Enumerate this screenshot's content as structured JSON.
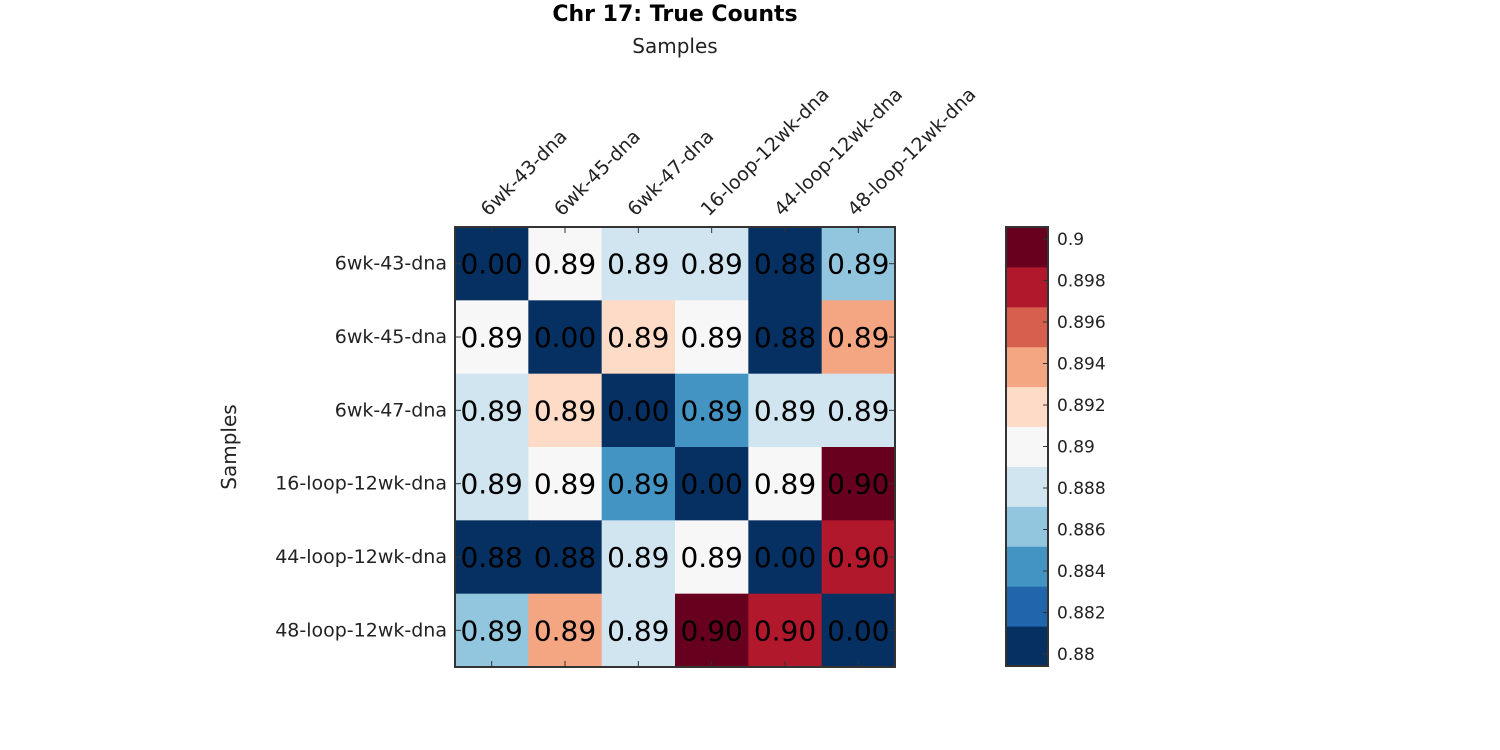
{
  "chart_data": {
    "type": "heatmap",
    "title": "Chr 17: True Counts",
    "xlabel": "Samples",
    "ylabel": "Samples",
    "categories": [
      "6wk-43-dna",
      "6wk-45-dna",
      "6wk-47-dna",
      "16-loop-12wk-dna",
      "44-loop-12wk-dna",
      "48-loop-12wk-dna"
    ],
    "values": [
      [
        0.0,
        0.89,
        0.888,
        0.888,
        0.88,
        0.886
      ],
      [
        0.89,
        0.0,
        0.892,
        0.89,
        0.88,
        0.894
      ],
      [
        0.888,
        0.892,
        0.0,
        0.885,
        0.888,
        0.888
      ],
      [
        0.888,
        0.89,
        0.885,
        0.0,
        0.89,
        0.9
      ],
      [
        0.88,
        0.88,
        0.888,
        0.89,
        0.0,
        0.897
      ],
      [
        0.886,
        0.894,
        0.888,
        0.9,
        0.897,
        0.0
      ]
    ],
    "cell_labels": [
      [
        "0.00",
        "0.89",
        "0.89",
        "0.89",
        "0.88",
        "0.89"
      ],
      [
        "0.89",
        "0.00",
        "0.89",
        "0.89",
        "0.88",
        "0.89"
      ],
      [
        "0.89",
        "0.89",
        "0.00",
        "0.89",
        "0.89",
        "0.89"
      ],
      [
        "0.89",
        "0.89",
        "0.89",
        "0.00",
        "0.89",
        "0.90"
      ],
      [
        "0.88",
        "0.88",
        "0.89",
        "0.89",
        "0.00",
        "0.90"
      ],
      [
        "0.89",
        "0.89",
        "0.89",
        "0.90",
        "0.90",
        "0.00"
      ]
    ],
    "colorbar": {
      "range": [
        0.88,
        0.9
      ],
      "ticks": [
        0.88,
        0.882,
        0.884,
        0.886,
        0.888,
        0.89,
        0.892,
        0.894,
        0.896,
        0.898,
        0.9
      ],
      "tick_labels": [
        "0.88",
        "0.882",
        "0.884",
        "0.886",
        "0.888",
        "0.89",
        "0.892",
        "0.894",
        "0.896",
        "0.898",
        "0.9"
      ],
      "colors": [
        "#053061",
        "#2166ac",
        "#4393c3",
        "#92c5de",
        "#d1e5f0",
        "#f7f7f7",
        "#fddbc7",
        "#f4a582",
        "#d6604d",
        "#b2182b",
        "#67001f"
      ]
    },
    "x_axis_position": "top",
    "legend": "colorbar-right",
    "grid": false
  }
}
